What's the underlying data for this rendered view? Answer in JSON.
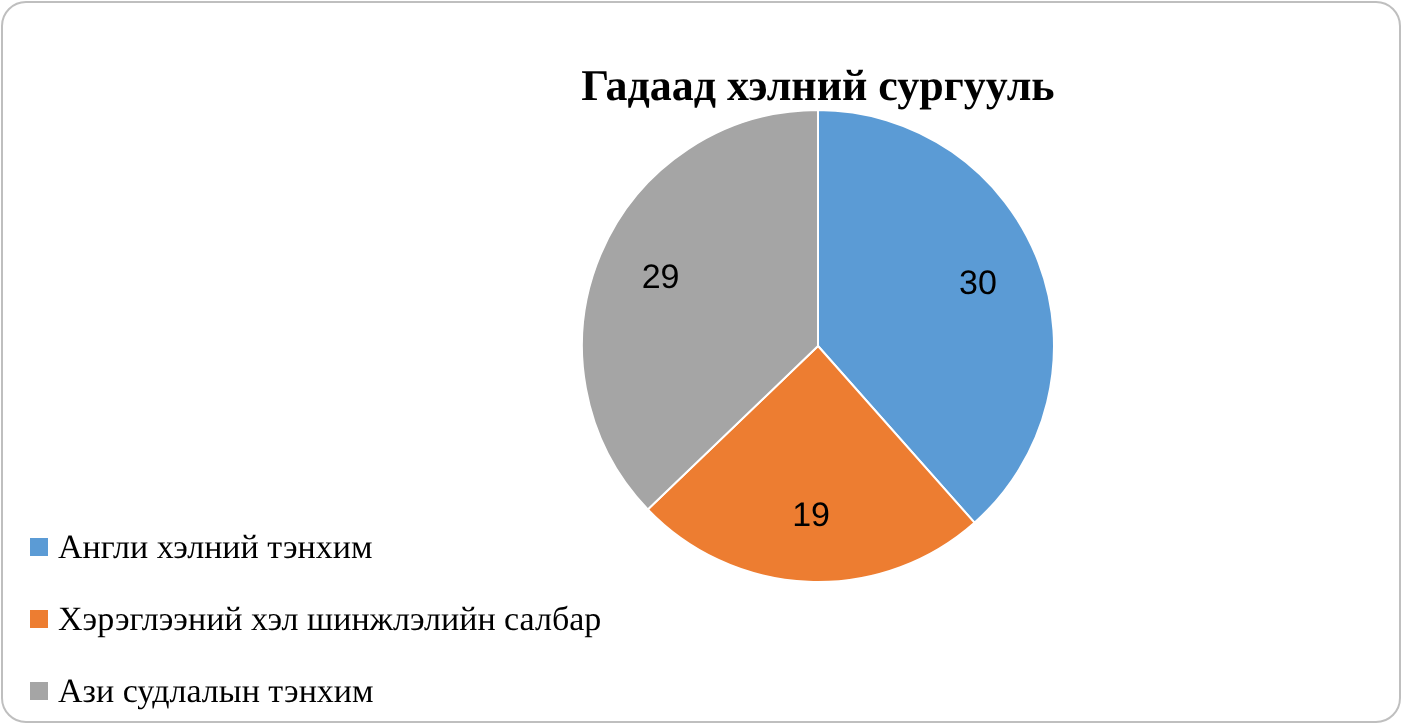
{
  "chart_data": {
    "type": "pie",
    "title": "Гадаад хэлний сургууль",
    "categories": [
      "Англи хэлний тэнхим",
      "Хэрэглээний хэл шинжлэлийн салбар",
      "Ази судлалын тэнхим"
    ],
    "values": [
      30,
      19,
      29
    ],
    "colors": [
      "#5b9bd5",
      "#ed7d31",
      "#a5a5a5"
    ],
    "data_labels": true,
    "legend": "bottom left"
  }
}
